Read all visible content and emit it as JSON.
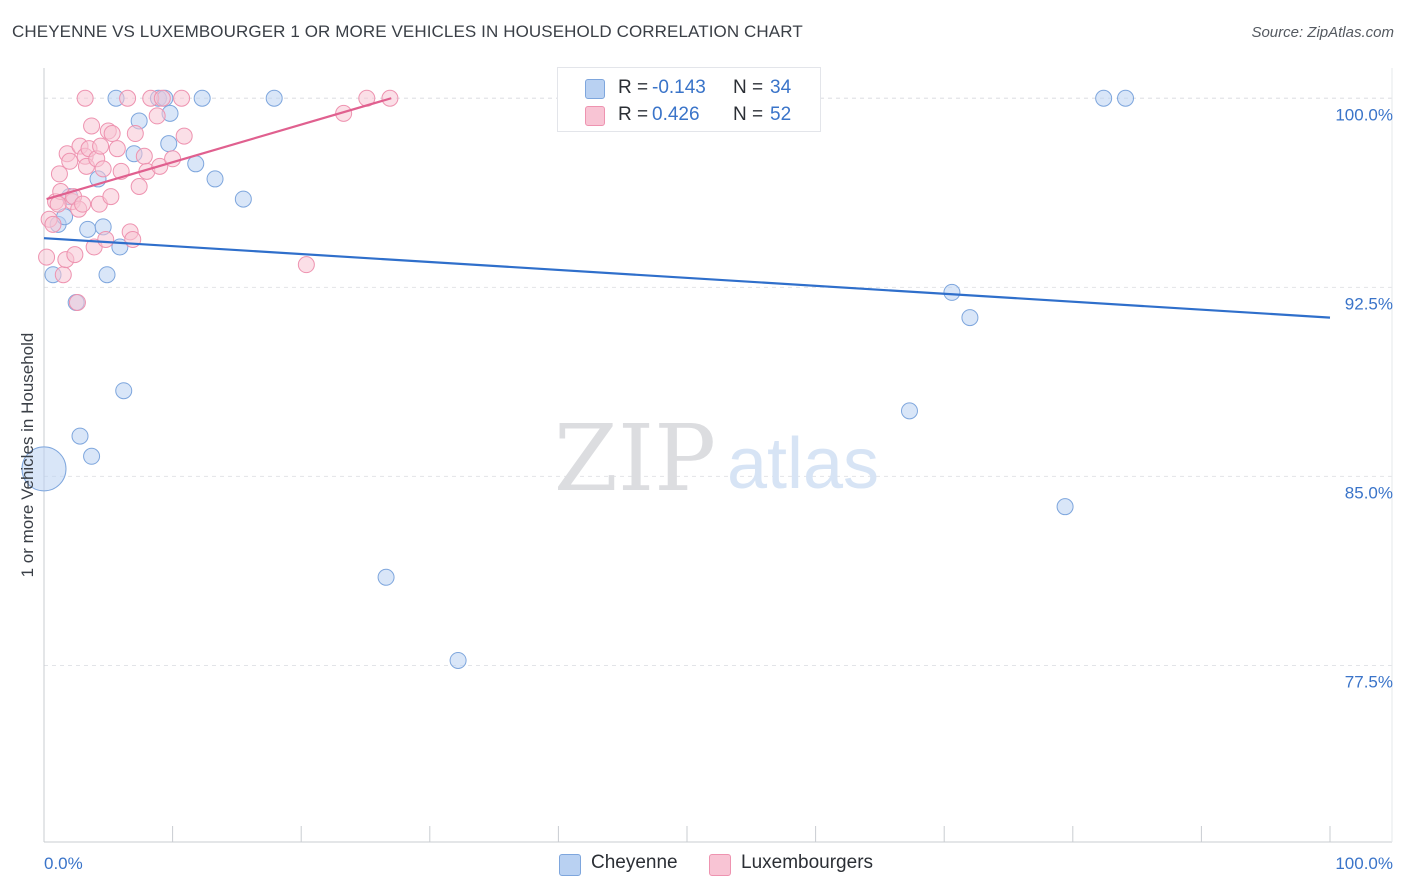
{
  "header": {
    "title": "CHEYENNE VS LUXEMBOURGER 1 OR MORE VEHICLES IN HOUSEHOLD CORRELATION CHART",
    "source": "Source: ZipAtlas.com"
  },
  "watermark": {
    "zip": "ZIP",
    "atlas": "atlas"
  },
  "legend": {
    "items": [
      {
        "name": "Cheyenne",
        "r_label": "R =",
        "r_value": "-0.143",
        "n_label": "N =",
        "n_value": "34",
        "fill": "#b9d1f2",
        "stroke": "#7ea6dd"
      },
      {
        "name": "Luxembourgers",
        "r_label": "R =",
        "r_value": "0.426",
        "n_label": "N =",
        "n_value": "52",
        "fill": "#f8c4d4",
        "stroke": "#ee93b0"
      }
    ]
  },
  "chart_data": {
    "type": "scatter",
    "title": "CHEYENNE VS LUXEMBOURGER 1 OR MORE VEHICLES IN HOUSEHOLD CORRELATION CHART",
    "xlabel": "",
    "ylabel": "1 or more Vehicles in Household",
    "xlim": [
      0,
      100
    ],
    "ylim": [
      70.5,
      101.2
    ],
    "x_tick_labels": [
      "0.0%",
      "100.0%"
    ],
    "y_ticks": [
      {
        "value": 100.0,
        "label": "100.0%"
      },
      {
        "value": 92.5,
        "label": "92.5%"
      },
      {
        "value": 85.0,
        "label": "85.0%"
      },
      {
        "value": 77.5,
        "label": "77.5%"
      }
    ],
    "colors": {
      "accent_text": "#3a74c9",
      "grid": "#e2e4e8",
      "axis": "#c9ccd1"
    },
    "series": [
      {
        "name": "Cheyenne",
        "color": "#7ea6dd",
        "fill": "#b9d1f2",
        "line_color": "#2f6fcb",
        "trend": {
          "x": [
            0,
            100
          ],
          "y": [
            94.45,
            91.3
          ]
        },
        "points": [
          {
            "x": 0.0,
            "y": 85.3,
            "big": true
          },
          {
            "x": 0.7,
            "y": 93.0
          },
          {
            "x": 1.1,
            "y": 95.0
          },
          {
            "x": 1.6,
            "y": 95.3
          },
          {
            "x": 2.0,
            "y": 96.1
          },
          {
            "x": 2.5,
            "y": 91.9
          },
          {
            "x": 2.8,
            "y": 86.6
          },
          {
            "x": 3.4,
            "y": 94.8
          },
          {
            "x": 3.7,
            "y": 85.8
          },
          {
            "x": 4.2,
            "y": 96.8
          },
          {
            "x": 4.6,
            "y": 94.9
          },
          {
            "x": 4.9,
            "y": 93.0
          },
          {
            "x": 5.6,
            "y": 100.0
          },
          {
            "x": 5.9,
            "y": 94.1
          },
          {
            "x": 6.2,
            "y": 88.4
          },
          {
            "x": 7.0,
            "y": 97.8
          },
          {
            "x": 7.4,
            "y": 99.1
          },
          {
            "x": 8.9,
            "y": 100.0
          },
          {
            "x": 9.4,
            "y": 100.0
          },
          {
            "x": 9.7,
            "y": 98.2
          },
          {
            "x": 9.8,
            "y": 99.4
          },
          {
            "x": 12.3,
            "y": 100.0
          },
          {
            "x": 11.8,
            "y": 97.4
          },
          {
            "x": 13.3,
            "y": 96.8
          },
          {
            "x": 15.5,
            "y": 96.0
          },
          {
            "x": 17.9,
            "y": 100.0
          },
          {
            "x": 26.6,
            "y": 81.0
          },
          {
            "x": 32.2,
            "y": 77.7
          },
          {
            "x": 67.3,
            "y": 87.6
          },
          {
            "x": 70.6,
            "y": 92.3
          },
          {
            "x": 72.0,
            "y": 91.3
          },
          {
            "x": 79.4,
            "y": 83.8
          },
          {
            "x": 82.4,
            "y": 100.0
          },
          {
            "x": 84.1,
            "y": 100.0
          }
        ]
      },
      {
        "name": "Luxembourgers",
        "color": "#ee93b0",
        "fill": "#f8c4d4",
        "line_color": "#e0608f",
        "trend": {
          "x": [
            0.2,
            27.0
          ],
          "y": [
            96.0,
            100.0
          ]
        },
        "points": [
          {
            "x": 0.2,
            "y": 93.7
          },
          {
            "x": 0.4,
            "y": 95.2
          },
          {
            "x": 0.7,
            "y": 95.0
          },
          {
            "x": 0.9,
            "y": 95.9
          },
          {
            "x": 1.2,
            "y": 97.0
          },
          {
            "x": 1.3,
            "y": 96.3
          },
          {
            "x": 1.5,
            "y": 93.0
          },
          {
            "x": 1.7,
            "y": 93.6
          },
          {
            "x": 1.8,
            "y": 97.8
          },
          {
            "x": 2.0,
            "y": 97.5
          },
          {
            "x": 2.2,
            "y": 95.9
          },
          {
            "x": 2.3,
            "y": 96.1
          },
          {
            "x": 2.4,
            "y": 93.8
          },
          {
            "x": 2.6,
            "y": 91.9
          },
          {
            "x": 2.7,
            "y": 95.6
          },
          {
            "x": 2.8,
            "y": 98.1
          },
          {
            "x": 3.0,
            "y": 95.8
          },
          {
            "x": 3.2,
            "y": 97.7
          },
          {
            "x": 3.3,
            "y": 97.3
          },
          {
            "x": 3.5,
            "y": 98.0
          },
          {
            "x": 3.7,
            "y": 98.9
          },
          {
            "x": 3.9,
            "y": 94.1
          },
          {
            "x": 4.1,
            "y": 97.6
          },
          {
            "x": 4.3,
            "y": 95.8
          },
          {
            "x": 4.4,
            "y": 98.1
          },
          {
            "x": 4.6,
            "y": 97.2
          },
          {
            "x": 4.8,
            "y": 94.4
          },
          {
            "x": 5.0,
            "y": 98.7
          },
          {
            "x": 5.2,
            "y": 96.1
          },
          {
            "x": 5.3,
            "y": 98.6
          },
          {
            "x": 5.7,
            "y": 98.0
          },
          {
            "x": 6.0,
            "y": 97.1
          },
          {
            "x": 6.5,
            "y": 100.0
          },
          {
            "x": 6.7,
            "y": 94.7
          },
          {
            "x": 6.9,
            "y": 94.4
          },
          {
            "x": 7.1,
            "y": 98.6
          },
          {
            "x": 7.4,
            "y": 96.5
          },
          {
            "x": 7.8,
            "y": 97.7
          },
          {
            "x": 8.0,
            "y": 97.1
          },
          {
            "x": 8.3,
            "y": 100.0
          },
          {
            "x": 8.8,
            "y": 99.3
          },
          {
            "x": 9.0,
            "y": 97.3
          },
          {
            "x": 9.2,
            "y": 100.0
          },
          {
            "x": 10.0,
            "y": 97.6
          },
          {
            "x": 10.7,
            "y": 100.0
          },
          {
            "x": 10.9,
            "y": 98.5
          },
          {
            "x": 3.2,
            "y": 100.0
          },
          {
            "x": 20.4,
            "y": 93.4
          },
          {
            "x": 23.3,
            "y": 99.4
          },
          {
            "x": 25.1,
            "y": 100.0
          },
          {
            "x": 26.9,
            "y": 100.0
          },
          {
            "x": 1.1,
            "y": 95.8
          }
        ]
      }
    ]
  }
}
